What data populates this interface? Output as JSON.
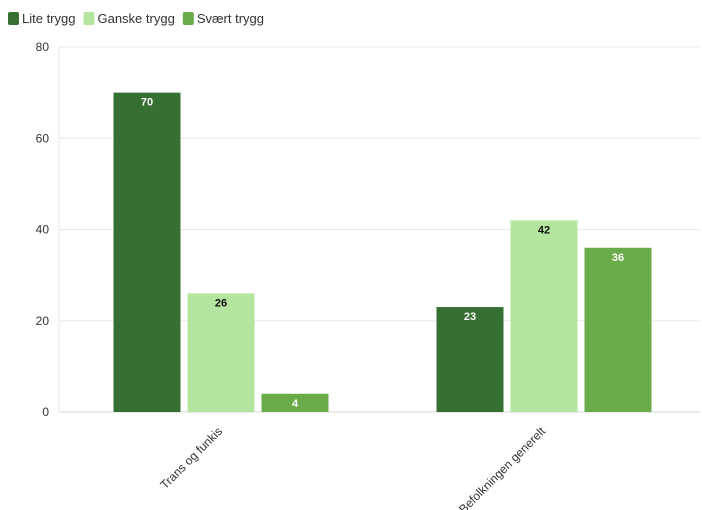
{
  "chart_data": {
    "type": "bar",
    "title": "",
    "xlabel": "",
    "ylabel": "",
    "categories": [
      "Trans og funkis",
      "Befolkningen generelt"
    ],
    "series": [
      {
        "name": "Lite trygg",
        "values": [
          70,
          23
        ],
        "color": "#356f31",
        "label_color": "#ffffff"
      },
      {
        "name": "Ganske trygg",
        "values": [
          26,
          42
        ],
        "color": "#b3e59f",
        "label_color": "#111111"
      },
      {
        "name": "Svært trygg",
        "values": [
          4,
          36
        ],
        "color": "#69ab48",
        "label_color": "#ffffff"
      }
    ],
    "ylim": [
      0,
      80
    ],
    "yticks": [
      0,
      20,
      40,
      60,
      80
    ],
    "grid": true,
    "legend_position": "top-left",
    "small_value_label_color": "#111111"
  }
}
